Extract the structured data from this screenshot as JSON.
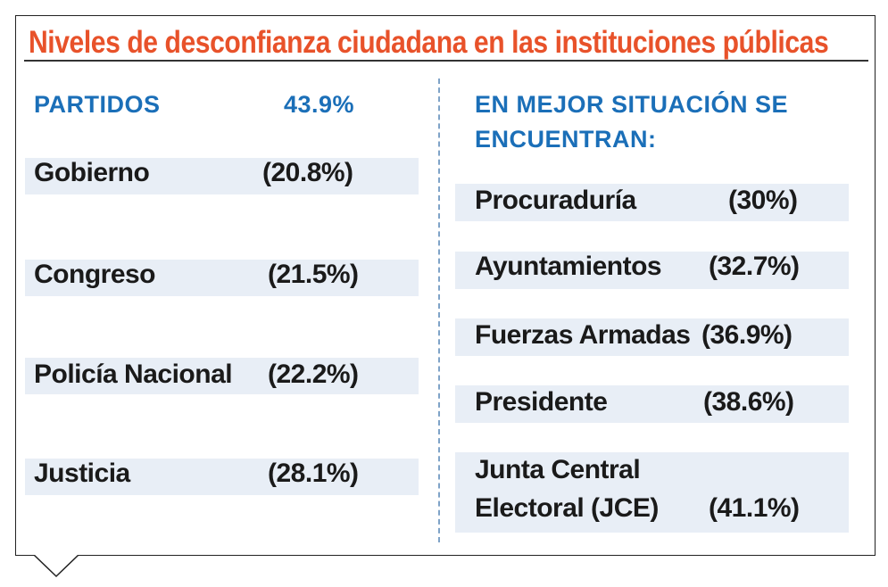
{
  "chart_data": {
    "type": "table",
    "title": "Niveles de desconfianza ciudadana en las instituciones públicas",
    "left": {
      "header_label": "PARTIDOS",
      "header_value": "43.9%",
      "rows": [
        {
          "label": "Gobierno",
          "value": "(20.8%)"
        },
        {
          "label": "Congreso",
          "value": "(21.5%)"
        },
        {
          "label": "Policía Nacional",
          "value": "(22.2%)"
        },
        {
          "label": "Justicia",
          "value": "(28.1%)"
        }
      ]
    },
    "right": {
      "header_line1": "EN MEJOR SITUACIÓN SE",
      "header_line2": "ENCUENTRAN:",
      "rows": [
        {
          "label": "Procuraduría",
          "value": "(30%)"
        },
        {
          "label": "Ayuntamientos",
          "value": "(32.7%)"
        },
        {
          "label": "Fuerzas Armadas",
          "value": "(36.9%)"
        },
        {
          "label": "Presidente",
          "value": "(38.6%)"
        },
        {
          "label_line1": "Junta Central",
          "label_line2": "Electoral (JCE)",
          "value": "(41.1%)"
        }
      ]
    }
  },
  "colors": {
    "title": "#e8522a",
    "header": "#1b6fb8",
    "row_background": "#e8eef6",
    "text": "#1a1a1a",
    "divider": "#7fa3c8"
  }
}
